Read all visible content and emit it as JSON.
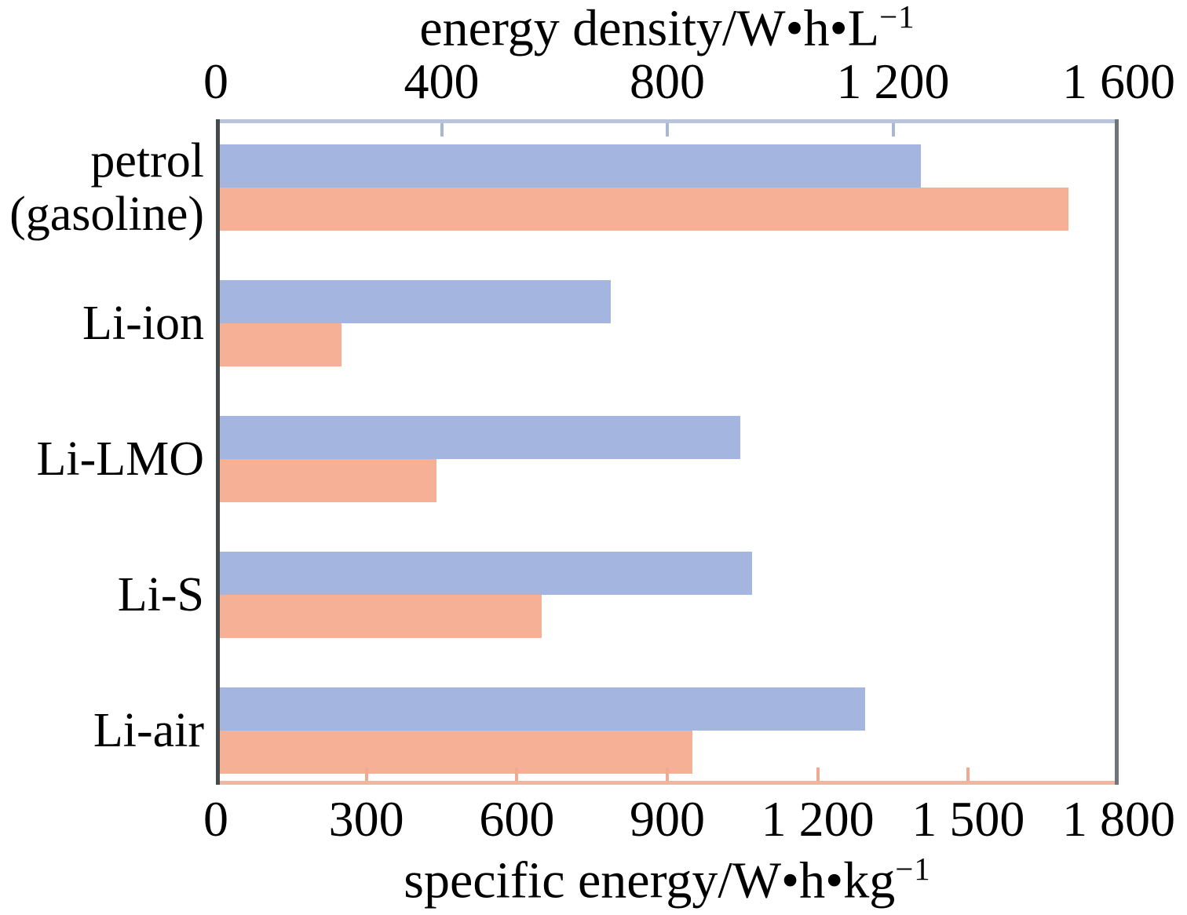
{
  "chart_data": {
    "type": "bar",
    "orientation": "horizontal",
    "title": "",
    "categories": [
      "petrol (gasoline)",
      "Li-ion",
      "Li-LMO",
      "Li-S",
      "Li-air"
    ],
    "category_display": [
      [
        "petrol",
        "(gasoline)"
      ],
      [
        "Li-ion"
      ],
      [
        "Li-LMO"
      ],
      [
        "Li-S"
      ],
      [
        "Li-air"
      ]
    ],
    "series": [
      {
        "name": "energy density/W•h•L−1",
        "axis": "top",
        "color": "#a4b5e0",
        "values": [
          1250,
          700,
          930,
          950,
          1150
        ]
      },
      {
        "name": "specific energy/W•h•kg−1",
        "axis": "bottom",
        "color": "#f6b095",
        "values": [
          1700,
          250,
          440,
          650,
          950
        ]
      }
    ],
    "axes": {
      "top": {
        "label": "energy density/W•h•L",
        "label_sup": "−1",
        "range": [
          0,
          1600
        ],
        "ticks": [
          0,
          400,
          800,
          1200,
          1600
        ],
        "tick_labels": [
          "0",
          "400",
          "800",
          "1 200",
          "1 600"
        ],
        "line_color": "#b9c4da",
        "tick_color": "#a9b7d2"
      },
      "bottom": {
        "label": "specific energy/W•h•kg",
        "label_sup": "−1",
        "range": [
          0,
          1800
        ],
        "ticks": [
          0,
          300,
          600,
          900,
          1200,
          1500,
          1800
        ],
        "tick_labels": [
          "0",
          "300",
          "600",
          "900",
          "1 200",
          "1 500",
          "1 800"
        ],
        "line_color": "#f1b69f",
        "tick_color": "#eeab91"
      },
      "left": {
        "line_color": "#454a4d"
      },
      "right": {
        "line_color": "#6f7578"
      }
    },
    "grid": false,
    "legend": false,
    "background": "#ffffff"
  }
}
